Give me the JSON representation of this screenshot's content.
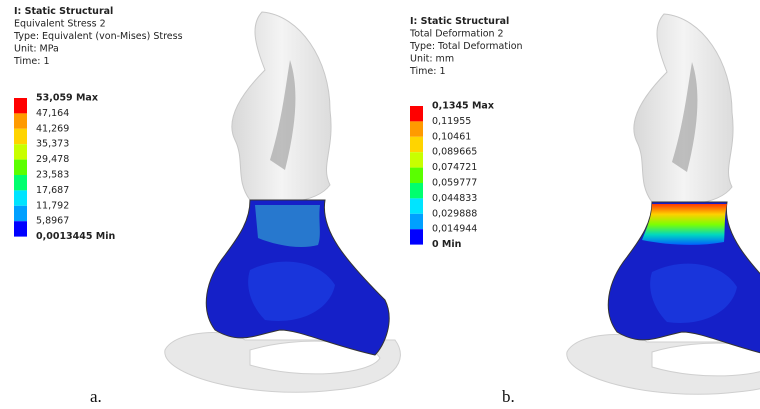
{
  "panels": [
    {
      "header": [
        "I: Static Structural",
        "Equivalent Stress 2",
        "Type: Equivalent (von-Mises) Stress",
        "Unit: MPa",
        "Time: 1"
      ],
      "legend": [
        "53,059 Max",
        "47,164",
        "41,269",
        "35,373",
        "29,478",
        "23,583",
        "17,687",
        "11,792",
        "5,8967",
        "0,0013445 Min"
      ],
      "caption": "a."
    },
    {
      "header": [
        "I: Static Structural",
        "Total Deformation 2",
        "Type: Total Deformation",
        "Unit: mm",
        "Time: 1"
      ],
      "legend": [
        "0,1345 Max",
        "0,11955",
        "0,10461",
        "0,089665",
        "0,074721",
        "0,059777",
        "0,044833",
        "0,029888",
        "0,014944",
        "0 Min"
      ],
      "caption": "b."
    }
  ]
}
